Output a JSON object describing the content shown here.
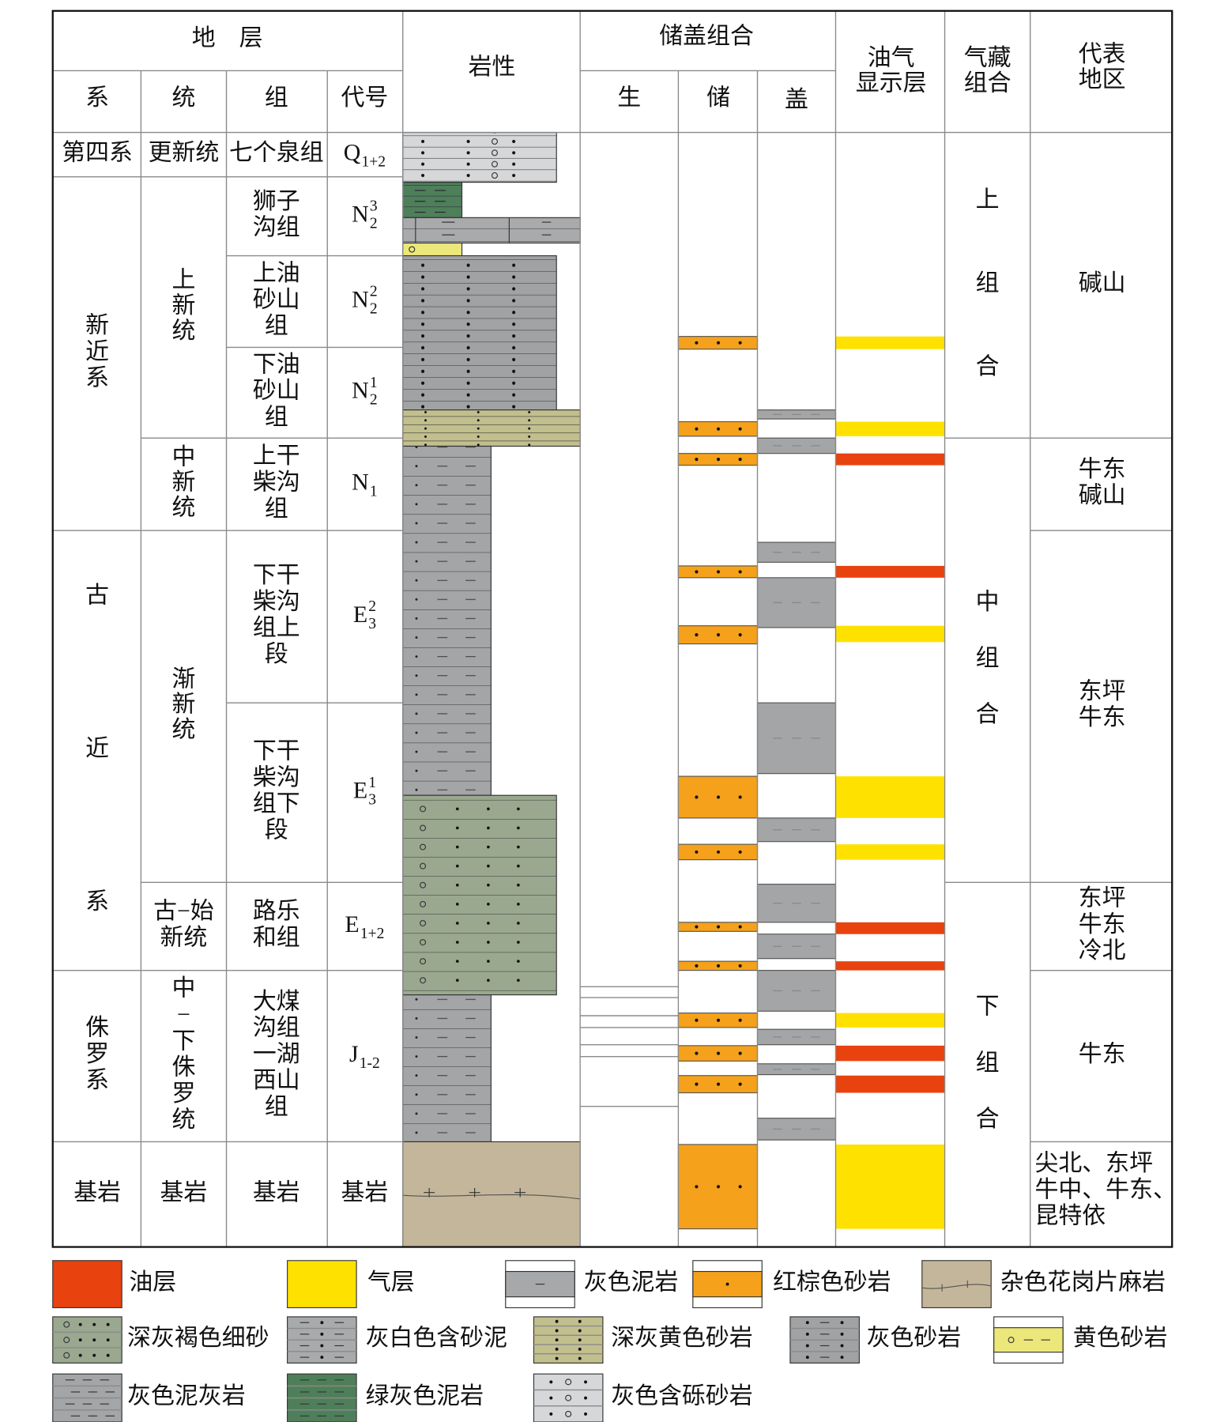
{
  "header": {
    "strata": "地　层",
    "system": "系",
    "series": "统",
    "formation": "组",
    "code": "代号",
    "lithology": "岩性",
    "combination": "储盖组合",
    "source": "生",
    "reservoir": "储",
    "cap": "盖",
    "show": [
      "油气",
      "显示层"
    ],
    "play": [
      "气藏",
      "组合"
    ],
    "area": [
      "代表",
      "地区"
    ]
  },
  "systems": [
    [
      "第四系"
    ],
    [
      "新",
      "近",
      "系"
    ],
    [
      "古",
      "近",
      "系"
    ],
    [
      "侏",
      "罗",
      "系"
    ],
    [
      "基岩"
    ]
  ],
  "series": [
    [
      "更新统"
    ],
    [
      "上",
      "新",
      "统"
    ],
    [
      "中",
      "新",
      "统"
    ],
    [
      "渐",
      "新",
      "统"
    ],
    [
      "古−始",
      "新统"
    ],
    [
      "中",
      "−",
      "下",
      "侏",
      "罗",
      "统"
    ],
    [
      "基岩"
    ]
  ],
  "formations": [
    [
      "七个泉组"
    ],
    [
      "狮子",
      "沟组"
    ],
    [
      "上油",
      "砂山",
      "组"
    ],
    [
      "下油",
      "砂山",
      "组"
    ],
    [
      "上干",
      "柴沟",
      "组"
    ],
    [
      "下干",
      "柴沟",
      "组上",
      "段"
    ],
    [
      "下干",
      "柴沟",
      "组下",
      "段"
    ],
    [
      "路乐",
      "和组"
    ],
    [
      "大煤",
      "沟组",
      "一湖",
      "西山",
      "组"
    ],
    [
      "基岩"
    ]
  ],
  "codes": [
    {
      "base": "Q",
      "sub": "1+2"
    },
    {
      "base": "N",
      "sub": "2",
      "sup": "3"
    },
    {
      "base": "N",
      "sub": "2",
      "sup": "2"
    },
    {
      "base": "N",
      "sub": "2",
      "sup": "1"
    },
    {
      "base": "N",
      "sub": "1"
    },
    {
      "base": "E",
      "sub": "3",
      "sup": "2"
    },
    {
      "base": "E",
      "sub": "3",
      "sup": "1"
    },
    {
      "base": "E",
      "sub": "1+2"
    },
    {
      "base": "J",
      "sub": "1-2"
    },
    {
      "base": "基岩"
    }
  ],
  "plays": [
    [
      "上",
      "组",
      "合"
    ],
    [
      "中",
      "组",
      "合"
    ],
    [
      "下",
      "组",
      "合"
    ]
  ],
  "areas": [
    [
      "碱山"
    ],
    [
      "牛东",
      "碱山"
    ],
    [
      "东坪",
      "牛东"
    ],
    [
      "东坪",
      "牛东",
      "冷北"
    ],
    [
      "牛东"
    ],
    [
      "尖北、东坪",
      "牛中、牛东、",
      "昆特依"
    ]
  ],
  "legend": [
    "油层",
    "气层",
    "灰色泥岩",
    "红棕色砂岩",
    "杂色花岗片麻岩",
    "深灰褐色细砂",
    "灰白色含砂泥",
    "深灰黄色砂岩",
    "灰色砂岩",
    "黄色砂岩",
    "灰色泥灰岩",
    "绿灰色泥岩",
    "灰色含砾砂岩"
  ]
}
